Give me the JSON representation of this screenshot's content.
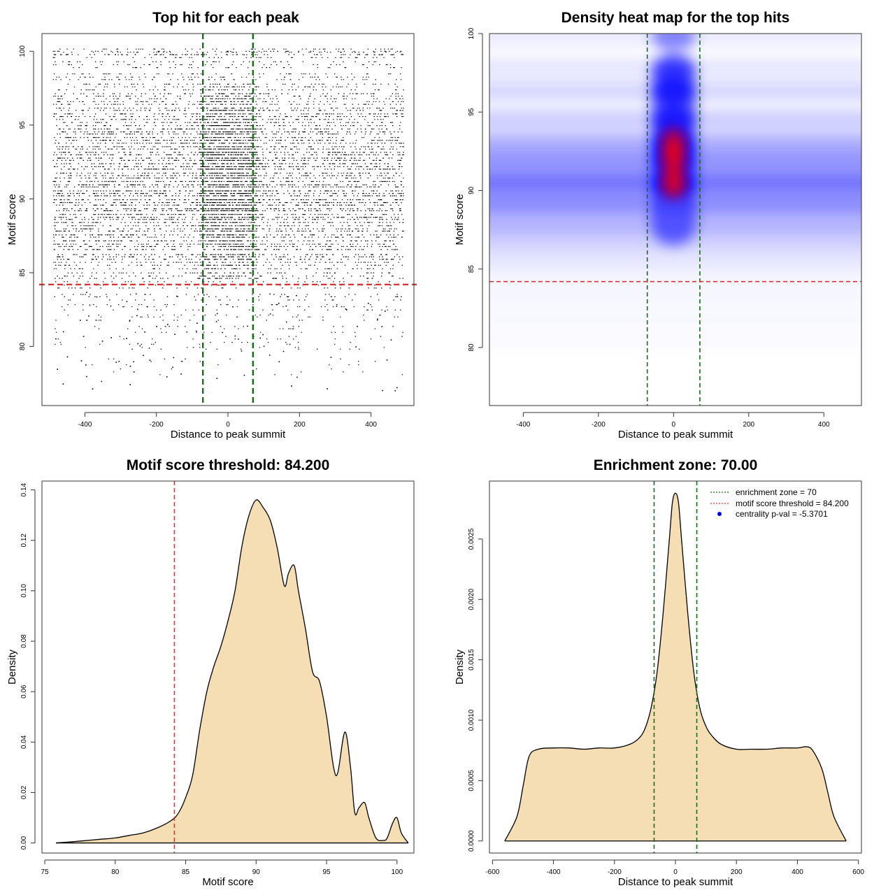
{
  "figure": {
    "colors": {
      "points": "#000000",
      "threshold": "#dd3333",
      "zone": "#1a6b1a",
      "fill": "#f5deb3",
      "heat_low": "#ffffff",
      "heat_mid": "#0000ff",
      "heat_high": "#ff0000",
      "legend_point": "#0000ff"
    }
  },
  "chart_data": [
    {
      "id": "scatter",
      "type": "scatter",
      "title": "Top hit for each peak",
      "xlabel": "Distance to peak summit",
      "ylabel": "Motif score",
      "xlim": [
        -520,
        520
      ],
      "ylim": [
        76,
        101.2
      ],
      "xticks": [
        -400,
        -200,
        0,
        200,
        400
      ],
      "yticks": [
        80,
        85,
        90,
        95,
        100
      ],
      "x_range": [
        -490,
        490
      ],
      "score_levels": [
        78.3,
        79.0,
        80.0,
        80.5,
        81.2,
        82.0,
        82.7,
        83.4,
        84.2,
        84.8,
        85.5,
        86.1,
        86.8,
        87.4,
        88.0,
        88.6,
        89.2,
        89.8,
        90.4,
        91.0,
        91.6,
        92.2,
        92.8,
        93.4,
        94.0,
        94.6,
        95.2,
        95.8,
        96.4,
        97.0,
        97.6,
        98.3,
        99.1,
        99.8,
        100.0
      ],
      "level_density": [
        0.02,
        0.03,
        0.05,
        0.06,
        0.08,
        0.1,
        0.12,
        0.14,
        0.2,
        0.35,
        0.45,
        0.55,
        0.65,
        0.7,
        0.75,
        0.8,
        0.85,
        0.9,
        0.9,
        0.9,
        0.88,
        0.86,
        0.85,
        0.82,
        0.8,
        0.75,
        0.7,
        0.6,
        0.55,
        0.45,
        0.35,
        0.28,
        0.22,
        0.25,
        0.3
      ],
      "hlines": [
        {
          "y": 84.2,
          "role": "threshold"
        }
      ],
      "vlines": [
        {
          "x": -70,
          "role": "zone"
        },
        {
          "x": 70,
          "role": "zone"
        }
      ]
    },
    {
      "id": "heatmap",
      "type": "heatmap",
      "title": "Density heat map for the top hits",
      "xlabel": "Distance to peak summit",
      "ylabel": "Motif score",
      "xlim": [
        -490,
        500
      ],
      "ylim": [
        76.3,
        100.0
      ],
      "xticks": [
        -400,
        -200,
        0,
        200,
        400
      ],
      "yticks": [
        80,
        85,
        90,
        95,
        100
      ],
      "center_peaks": [
        {
          "score": 90.5,
          "intensity": 1.0
        },
        {
          "score": 92.0,
          "intensity": 0.95
        },
        {
          "score": 93.0,
          "intensity": 0.9
        },
        {
          "score": 94.5,
          "intensity": 0.55
        },
        {
          "score": 96.3,
          "intensity": 0.55
        },
        {
          "score": 97.8,
          "intensity": 0.3
        },
        {
          "score": 99.8,
          "intensity": 0.25
        }
      ],
      "hlines": [
        {
          "y": 84.2,
          "role": "threshold"
        }
      ],
      "vlines": [
        {
          "x": -70,
          "role": "zone"
        },
        {
          "x": 70,
          "role": "zone"
        }
      ]
    },
    {
      "id": "score_density",
      "type": "area",
      "title": "Motif score threshold: 84.200",
      "xlabel": "Motif score",
      "ylabel": "Density",
      "xlim": [
        74.8,
        101.2
      ],
      "ylim": [
        -0.004,
        0.1435
      ],
      "xticks": [
        75,
        80,
        85,
        90,
        95,
        100
      ],
      "yticks": [
        "0.00",
        "0.02",
        "0.04",
        "0.06",
        "0.08",
        "0.10",
        "0.12",
        "0.14"
      ],
      "x": [
        75.8,
        77,
        78,
        79,
        80,
        81,
        82,
        83,
        84,
        84.5,
        85,
        85.5,
        86,
        86.5,
        87,
        87.5,
        88,
        88.5,
        89,
        89.5,
        90,
        90.5,
        91,
        91.5,
        92,
        92.3,
        92.7,
        93,
        93.5,
        94,
        94.5,
        95,
        95.5,
        95.8,
        96.3,
        96.7,
        97,
        97.3,
        97.7,
        98,
        98.5,
        99,
        99.3,
        99.7,
        100,
        100.3,
        100.8
      ],
      "y": [
        0.0,
        0.0005,
        0.001,
        0.0015,
        0.002,
        0.003,
        0.004,
        0.006,
        0.009,
        0.012,
        0.018,
        0.027,
        0.045,
        0.06,
        0.07,
        0.078,
        0.088,
        0.1,
        0.118,
        0.13,
        0.136,
        0.133,
        0.128,
        0.117,
        0.102,
        0.107,
        0.11,
        0.1,
        0.085,
        0.068,
        0.064,
        0.05,
        0.03,
        0.028,
        0.044,
        0.03,
        0.012,
        0.014,
        0.016,
        0.01,
        0.002,
        0.001,
        0.002,
        0.008,
        0.01,
        0.004,
        0.0
      ],
      "vlines": [
        {
          "x": 84.2,
          "role": "threshold"
        }
      ]
    },
    {
      "id": "distance_density",
      "type": "area",
      "title": "Enrichment zone: 70.00",
      "xlabel": "Distance to peak summit",
      "ylabel": "Density",
      "xlim": [
        -610,
        610
      ],
      "ylim": [
        -0.0001,
        0.00298
      ],
      "xticks": [
        -600,
        -400,
        -200,
        0,
        200,
        400,
        600
      ],
      "yticks": [
        "0.0000",
        "0.0005",
        "0.0010",
        "0.0015",
        "0.0020",
        "0.0025"
      ],
      "x": [
        -560,
        -520,
        -500,
        -480,
        -450,
        -400,
        -350,
        -300,
        -250,
        -200,
        -150,
        -120,
        -100,
        -80,
        -60,
        -40,
        -20,
        -10,
        0,
        10,
        20,
        40,
        60,
        80,
        100,
        120,
        150,
        200,
        250,
        300,
        350,
        400,
        430,
        450,
        480,
        500,
        520,
        560
      ],
      "y": [
        0.0,
        0.0002,
        0.00045,
        0.0007,
        0.00076,
        0.00077,
        0.00077,
        0.00076,
        0.00077,
        0.00077,
        0.0008,
        0.00085,
        0.00093,
        0.0011,
        0.0014,
        0.0019,
        0.0025,
        0.0028,
        0.00288,
        0.0028,
        0.0025,
        0.0019,
        0.0014,
        0.0011,
        0.00095,
        0.00087,
        0.0008,
        0.00076,
        0.00076,
        0.00076,
        0.00077,
        0.00077,
        0.00078,
        0.00075,
        0.0006,
        0.0004,
        0.0002,
        0.0
      ],
      "vlines": [
        {
          "x": -70,
          "role": "zone"
        },
        {
          "x": 70,
          "role": "zone"
        }
      ],
      "legend": {
        "position": "top-right",
        "entries": [
          {
            "label": "enrichment zone = 70",
            "symbol": "dotted-line",
            "role": "zone"
          },
          {
            "label": "motif score threshold = 84.200",
            "symbol": "dotted-line",
            "role": "threshold"
          },
          {
            "label": "centrality p-val = -5.3701",
            "symbol": "point",
            "role": "legend_point"
          }
        ]
      }
    }
  ]
}
